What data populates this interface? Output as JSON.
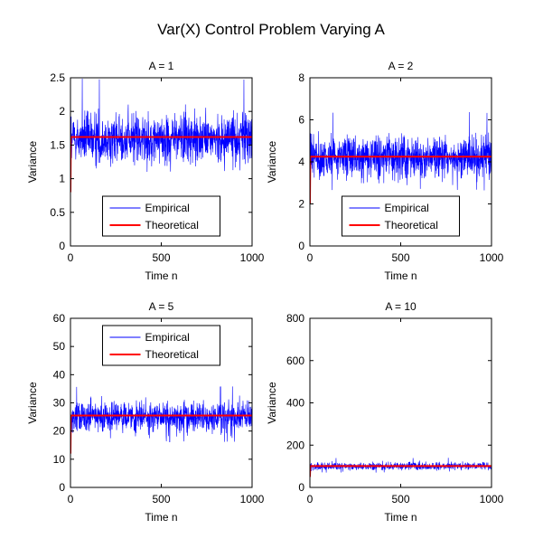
{
  "figure": {
    "title": "Var(X) Control Problem Varying A"
  },
  "chart_data": [
    {
      "type": "line",
      "title": "A = 1",
      "xlabel": "Time n",
      "ylabel": "Variance",
      "xlim": [
        0,
        1000
      ],
      "ylim": [
        0,
        2.5
      ],
      "xticks": [
        "0",
        "500",
        "1000"
      ],
      "yticks": [
        "0",
        "0.5",
        "1",
        "1.5",
        "2",
        "2.5"
      ],
      "legend_position": "lower-center",
      "series": [
        {
          "name": "Empirical",
          "color": "#0000ff",
          "mean": 1.6,
          "noise_range": [
            1.1,
            2.5
          ],
          "start_value": 0.8
        },
        {
          "name": "Theoretical",
          "color": "#ff0000",
          "values": [
            [
              0,
              0.8
            ],
            [
              2,
              1.62
            ],
            [
              1000,
              1.62
            ]
          ]
        }
      ]
    },
    {
      "type": "line",
      "title": "A = 2",
      "xlabel": "Time n",
      "ylabel": "Variance",
      "xlim": [
        0,
        1000
      ],
      "ylim": [
        0,
        8
      ],
      "xticks": [
        "0",
        "500",
        "1000"
      ],
      "yticks": [
        "0",
        "2",
        "4",
        "6",
        "8"
      ],
      "legend_position": "lower-center",
      "series": [
        {
          "name": "Empirical",
          "color": "#0000ff",
          "mean": 4.2,
          "noise_range": [
            2.6,
            6.4
          ],
          "start_value": 2.0
        },
        {
          "name": "Theoretical",
          "color": "#ff0000",
          "values": [
            [
              0,
              2.0
            ],
            [
              2,
              4.25
            ],
            [
              1000,
              4.25
            ]
          ]
        }
      ]
    },
    {
      "type": "line",
      "title": "A = 5",
      "xlabel": "Time n",
      "ylabel": "Variance",
      "xlim": [
        0,
        1000
      ],
      "ylim": [
        0,
        60
      ],
      "xticks": [
        "0",
        "500",
        "1000"
      ],
      "yticks": [
        "0",
        "10",
        "20",
        "30",
        "40",
        "50",
        "60"
      ],
      "legend_position": "upper-center",
      "series": [
        {
          "name": "Empirical",
          "color": "#0000ff",
          "mean": 25,
          "noise_range": [
            16,
            36
          ],
          "start_value": 12
        },
        {
          "name": "Theoretical",
          "color": "#ff0000",
          "values": [
            [
              0,
              12
            ],
            [
              2,
              25.5
            ],
            [
              1000,
              25.5
            ]
          ]
        }
      ]
    },
    {
      "type": "line",
      "title": "A = 10",
      "xlabel": "Time n",
      "ylabel": "Variance",
      "xlim": [
        0,
        1000
      ],
      "ylim": [
        0,
        800
      ],
      "xticks": [
        "0",
        "500",
        "1000"
      ],
      "yticks": [
        "0",
        "200",
        "400",
        "600",
        "800"
      ],
      "legend_position": "none",
      "series": [
        {
          "name": "Empirical",
          "color": "#0000ff",
          "mean": 100,
          "noise_range": [
            70,
            140
          ],
          "start_value": 50
        },
        {
          "name": "Theoretical",
          "color": "#ff0000",
          "values": [
            [
              0,
              50
            ],
            [
              2,
              101
            ],
            [
              1000,
              101
            ]
          ]
        }
      ]
    }
  ]
}
